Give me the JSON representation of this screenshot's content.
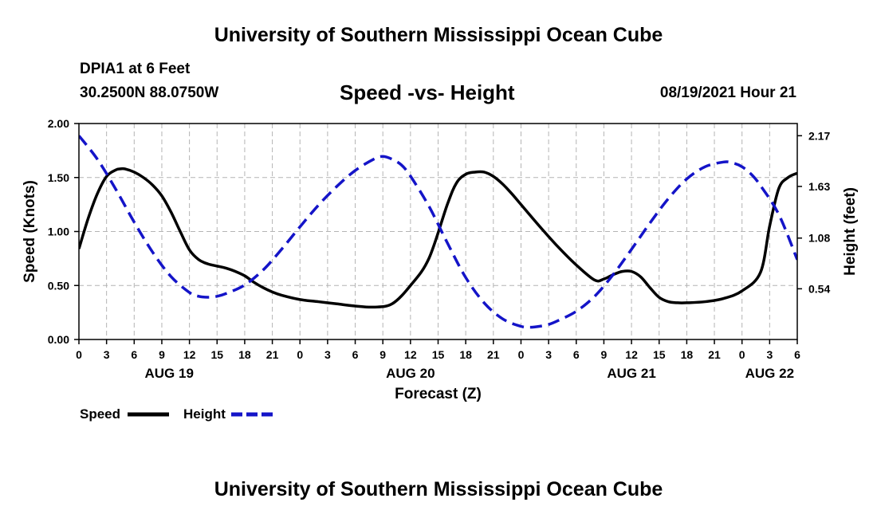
{
  "header": {
    "title": "University of Southern Mississippi Ocean Cube",
    "station": "DPIA1 at 6 Feet",
    "coords": "30.2500N  88.0750W",
    "plot_title": "Speed -vs- Height",
    "date": "08/19/2021 Hour 21"
  },
  "footer": {
    "title": "University of Southern Mississippi Ocean Cube"
  },
  "legend": {
    "speed_label": "Speed",
    "height_label": "Height"
  },
  "colors": {
    "speed": "#000000",
    "height": "#1414c8",
    "grid": "#b4b4b4"
  },
  "chart_data": {
    "type": "line",
    "xlabel": "Forecast (Z)",
    "x_range_hours": [
      0,
      78
    ],
    "x_ticks": [
      "0",
      "3",
      "6",
      "9",
      "12",
      "15",
      "18",
      "21",
      "0",
      "3",
      "6",
      "9",
      "12",
      "15",
      "18",
      "21",
      "0",
      "3",
      "6",
      "9",
      "12",
      "15",
      "18",
      "21",
      "0",
      "3",
      "6"
    ],
    "day_labels": [
      {
        "label": "AUG 19",
        "hour": 9.8
      },
      {
        "label": "AUG 20",
        "hour": 36.0
      },
      {
        "label": "AUG 21",
        "hour": 60.0
      },
      {
        "label": "AUG 22",
        "hour": 75.0
      }
    ],
    "left_axis": {
      "label": "Speed (Knots)",
      "range": [
        0,
        2
      ],
      "ticks": [
        "0.00",
        "0.50",
        "1.00",
        "1.50",
        "2.00"
      ]
    },
    "right_axis": {
      "label": "Height (feet)",
      "range": [
        0,
        2.3
      ],
      "ticks": [
        "0.54",
        "1.08",
        "1.63",
        "2.17"
      ],
      "tick_values": [
        0.54,
        1.08,
        1.63,
        2.17
      ]
    },
    "series": [
      {
        "name": "Speed",
        "axis": "left",
        "style": "solid",
        "x": [
          0,
          1,
          2,
          3,
          4,
          4.5,
          5,
          6,
          7,
          8,
          9,
          10,
          11,
          12,
          13,
          14,
          15,
          16,
          17,
          18,
          19,
          20,
          21,
          22,
          24,
          26,
          28,
          30,
          32,
          34,
          36,
          38,
          40,
          41,
          42,
          43,
          44,
          45,
          46,
          47,
          48,
          50,
          52,
          54,
          56,
          57,
          58,
          59,
          60,
          61,
          62,
          63,
          64,
          65,
          66,
          68,
          70,
          72,
          74,
          75,
          76,
          77,
          78
        ],
        "y": [
          0.84,
          1.12,
          1.35,
          1.51,
          1.57,
          1.58,
          1.58,
          1.55,
          1.5,
          1.43,
          1.33,
          1.18,
          1.0,
          0.83,
          0.74,
          0.7,
          0.68,
          0.66,
          0.63,
          0.59,
          0.53,
          0.48,
          0.44,
          0.41,
          0.37,
          0.35,
          0.33,
          0.31,
          0.3,
          0.33,
          0.5,
          0.75,
          1.25,
          1.45,
          1.53,
          1.55,
          1.55,
          1.51,
          1.44,
          1.35,
          1.25,
          1.05,
          0.86,
          0.69,
          0.55,
          0.56,
          0.6,
          0.63,
          0.63,
          0.58,
          0.48,
          0.39,
          0.35,
          0.34,
          0.34,
          0.35,
          0.38,
          0.45,
          0.62,
          1.05,
          1.4,
          1.5,
          1.54
        ]
      },
      {
        "name": "Height",
        "axis": "right",
        "style": "dashed",
        "x": [
          0,
          2,
          4,
          6,
          8,
          10,
          12,
          13,
          14,
          15,
          16,
          18,
          20,
          22,
          24,
          26,
          28,
          30,
          32,
          33,
          34,
          35,
          36,
          38,
          40,
          42,
          44,
          46,
          48,
          49,
          50,
          51,
          52,
          54,
          56,
          58,
          60,
          62,
          64,
          66,
          68,
          70,
          71,
          72,
          73,
          74,
          76,
          78
        ],
        "y": [
          2.17,
          1.92,
          1.6,
          1.25,
          0.93,
          0.67,
          0.5,
          0.46,
          0.45,
          0.46,
          0.49,
          0.58,
          0.74,
          0.96,
          1.2,
          1.43,
          1.63,
          1.8,
          1.92,
          1.95,
          1.92,
          1.86,
          1.74,
          1.42,
          1.03,
          0.66,
          0.39,
          0.22,
          0.14,
          0.13,
          0.14,
          0.16,
          0.2,
          0.3,
          0.46,
          0.69,
          0.96,
          1.24,
          1.5,
          1.71,
          1.84,
          1.89,
          1.88,
          1.84,
          1.76,
          1.64,
          1.33,
          0.85
        ]
      }
    ]
  }
}
